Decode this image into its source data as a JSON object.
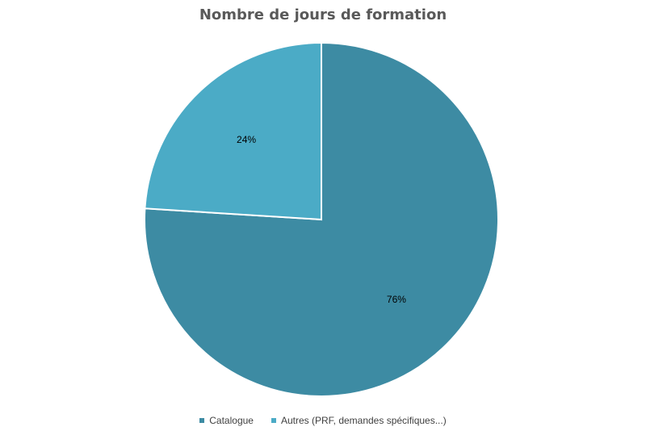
{
  "chart_data": {
    "type": "pie",
    "title": "Nombre de jours de formation",
    "slices": [
      {
        "name": "Catalogue",
        "value": 76,
        "label": "76%",
        "color": "#3D8BA3"
      },
      {
        "name": "Autres (PRF, demandes spécifiques...)",
        "value": 24,
        "label": "24%",
        "color": "#4BABC6"
      }
    ],
    "legend_position": "bottom",
    "start_angle": "12 o'clock",
    "direction": "clockwise"
  }
}
